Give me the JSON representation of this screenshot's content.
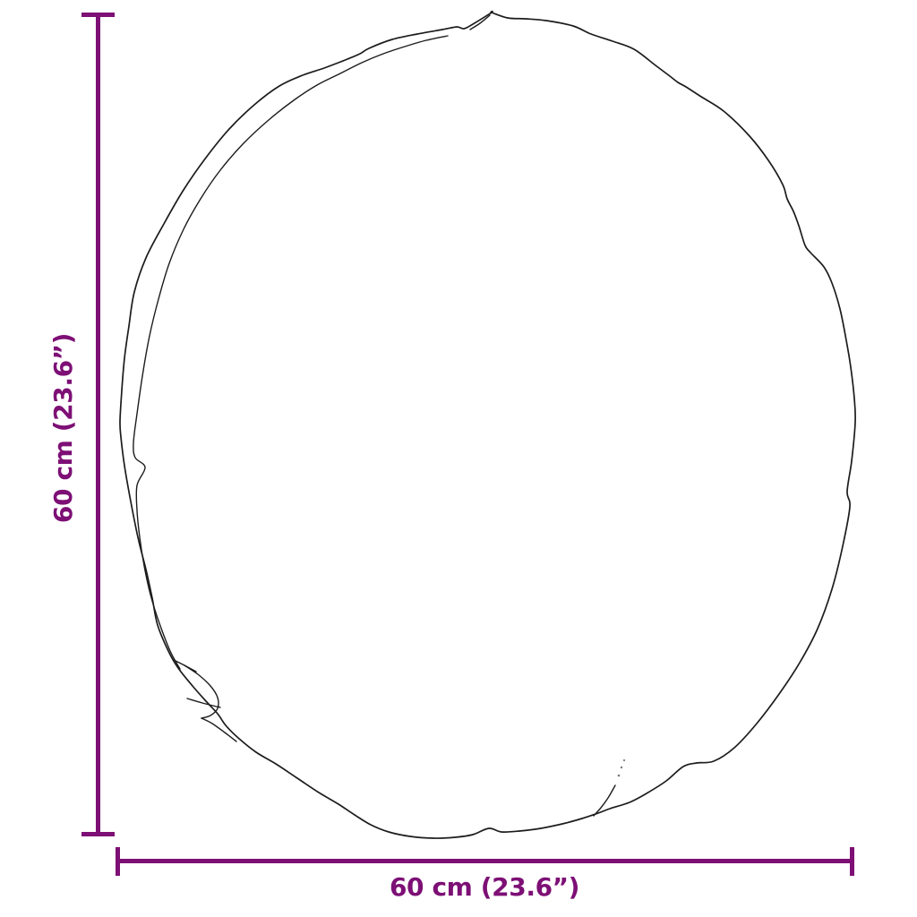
{
  "diagram": {
    "subject": "round-pouf-outline-top-view",
    "vertical_dimension": {
      "label": "60 cm (23.6”)"
    },
    "horizontal_dimension": {
      "label": "60 cm (23.6”)"
    }
  },
  "colors": {
    "dimension_accent": "#7D0F75",
    "outline": "#1C1C1C",
    "background": "#FFFFFF"
  }
}
